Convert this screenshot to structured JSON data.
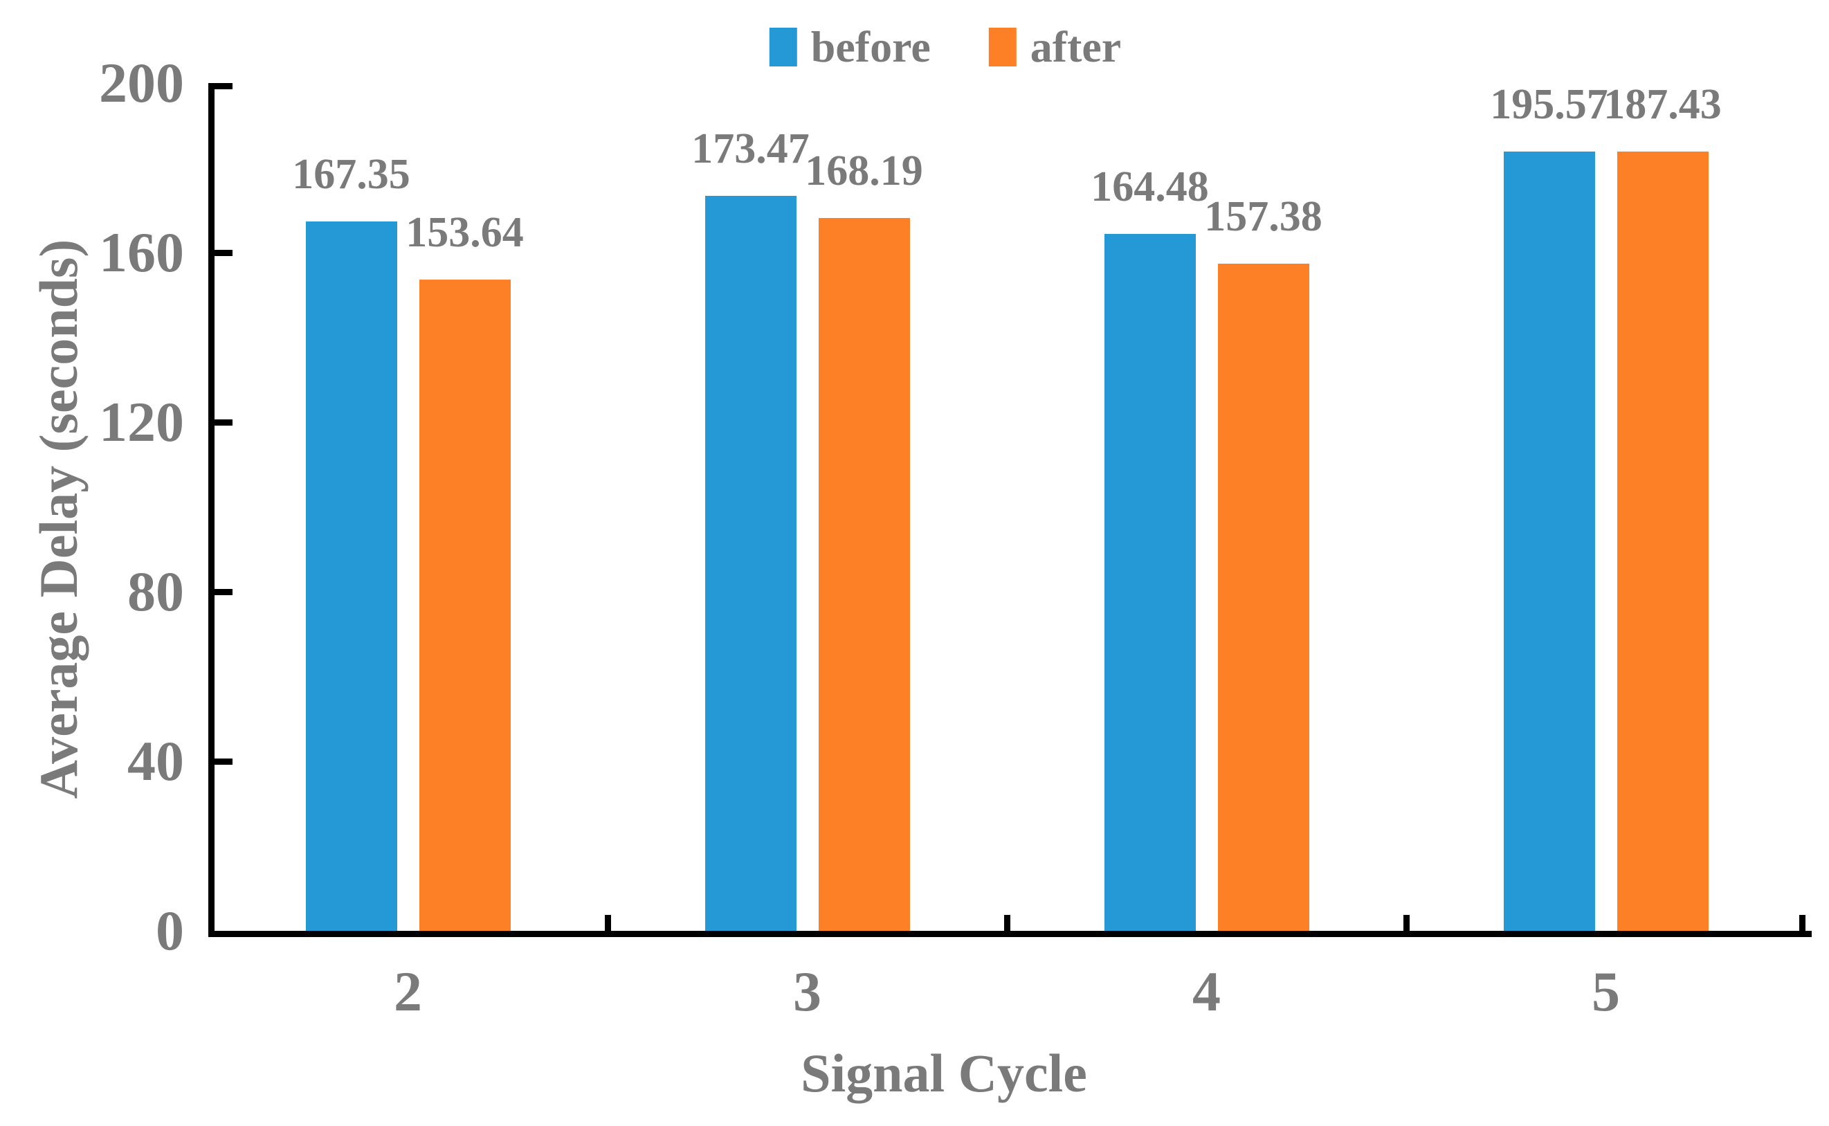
{
  "figure": {
    "background": "#FFFFFF",
    "text_color": "#7A7A7A",
    "axis_color": "#000000"
  },
  "legend": {
    "position": "top-center",
    "items": [
      {
        "label": "before",
        "color": "#2499D6"
      },
      {
        "label": "after",
        "color": "#FD8026"
      }
    ]
  },
  "chart_data": {
    "type": "bar",
    "categories": [
      "2",
      "3",
      "4",
      "5"
    ],
    "series": [
      {
        "name": "before",
        "color": "#2499D6",
        "values": [
          167.35,
          173.47,
          164.48,
          195.57
        ]
      },
      {
        "name": "after",
        "color": "#FD8026",
        "values": [
          153.64,
          168.19,
          157.38,
          187.43
        ]
      }
    ],
    "title": "",
    "xlabel": "Signal Cycle",
    "ylabel": "Average Delay (seconds)",
    "ylim": [
      0,
      200
    ],
    "yticks": [
      0,
      40,
      80,
      120,
      160,
      200
    ],
    "grid": false,
    "data_labels": true,
    "data_label_format": "2-decimals",
    "legend_position": "top"
  }
}
